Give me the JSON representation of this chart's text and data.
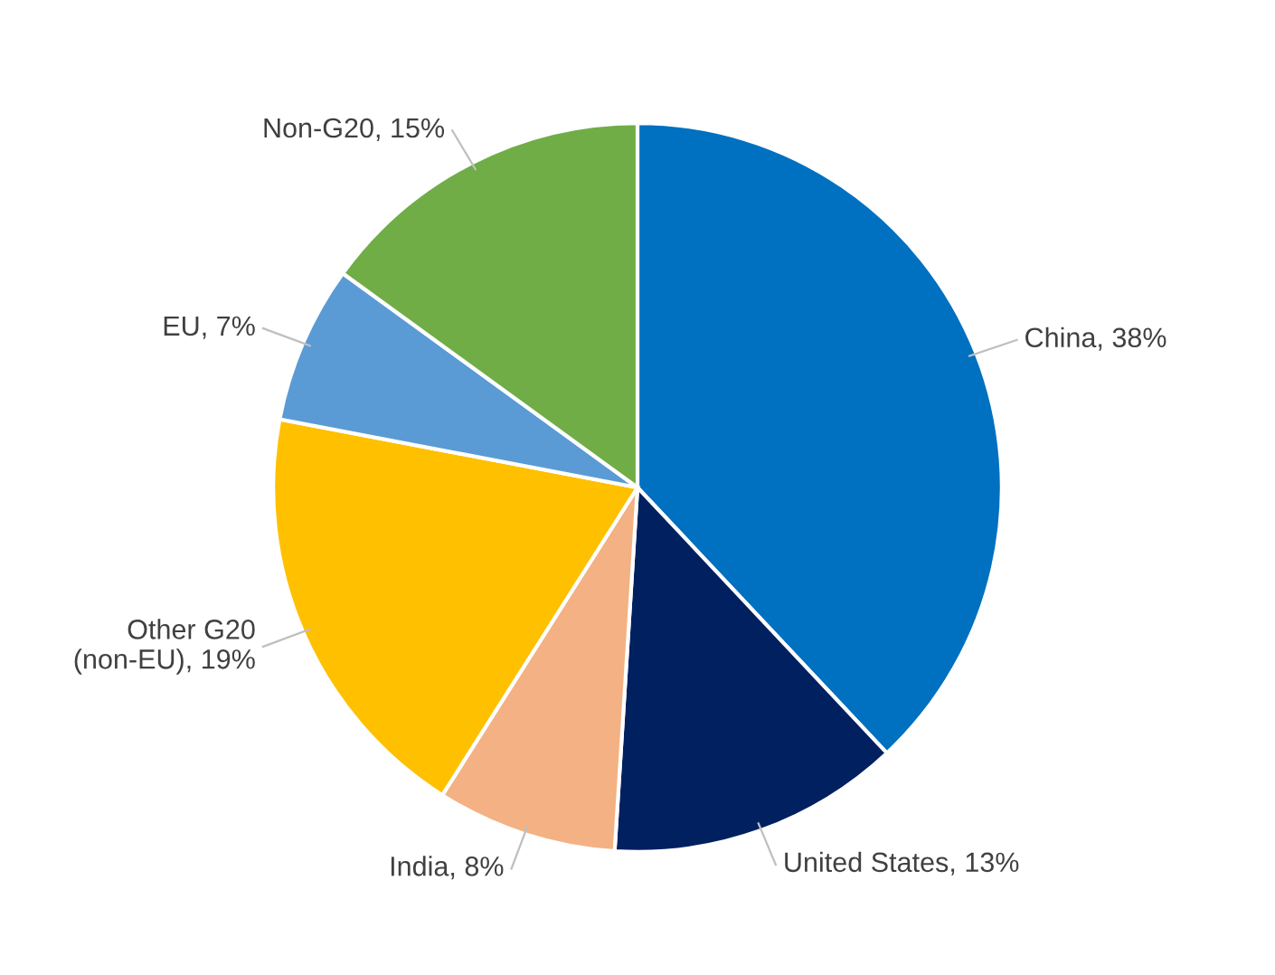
{
  "chart_data": {
    "type": "pie",
    "categories": [
      "China",
      "United States",
      "India",
      "Other G20 (non-EU)",
      "EU",
      "Non-G20"
    ],
    "values": [
      38,
      13,
      8,
      19,
      7,
      15
    ],
    "value_labels": [
      "38%",
      "13%",
      "8%",
      "19%",
      "7%",
      "15%"
    ],
    "colors": [
      "#0070c0",
      "#002060",
      "#f4b183",
      "#ffc000",
      "#5b9bd5",
      "#70ad47"
    ]
  }
}
